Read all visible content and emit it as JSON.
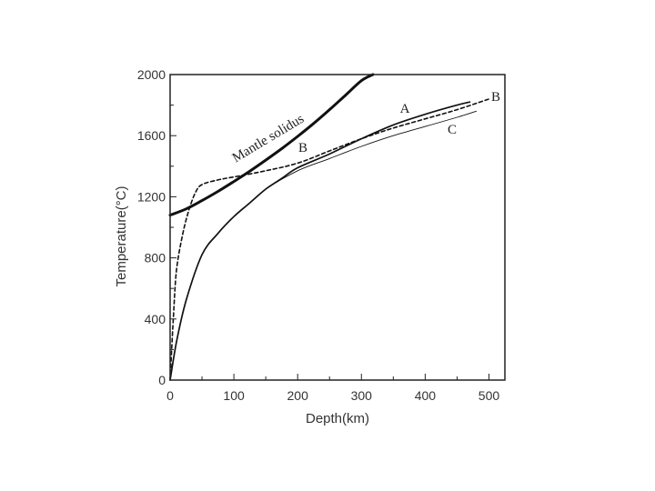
{
  "chart_data": {
    "type": "line",
    "xlabel": "Depth(km)",
    "ylabel": "Temperature(°C)",
    "xlim": [
      0,
      525
    ],
    "ylim": [
      0,
      2000
    ],
    "x_ticks": [
      0,
      100,
      200,
      300,
      400,
      500
    ],
    "y_ticks": [
      0,
      400,
      800,
      1200,
      1600,
      2000
    ],
    "grid": false,
    "series": [
      {
        "name": "Mantle solidus",
        "style": "thick-solid",
        "x": [
          0,
          25,
          50,
          75,
          100,
          125,
          150,
          175,
          200,
          225,
          250,
          275,
          300,
          318
        ],
        "y": [
          1080,
          1120,
          1175,
          1235,
          1300,
          1368,
          1440,
          1515,
          1595,
          1680,
          1770,
          1865,
          1960,
          2000
        ]
      },
      {
        "name": "A",
        "style": "solid",
        "x": [
          0,
          10,
          25,
          50,
          75,
          100,
          125,
          150,
          175,
          200,
          250,
          300,
          350,
          400,
          450,
          470
        ],
        "y": [
          0,
          250,
          520,
          820,
          960,
          1070,
          1160,
          1250,
          1320,
          1390,
          1480,
          1580,
          1670,
          1740,
          1800,
          1820
        ]
      },
      {
        "name": "B",
        "style": "dashed",
        "x": [
          0,
          5,
          10,
          20,
          30,
          40,
          50,
          75,
          100,
          150,
          200,
          250,
          300,
          350,
          400,
          450,
          500
        ],
        "y": [
          0,
          400,
          720,
          960,
          1120,
          1230,
          1280,
          1310,
          1330,
          1370,
          1420,
          1500,
          1580,
          1650,
          1710,
          1770,
          1840
        ]
      },
      {
        "name": "C",
        "style": "thin-solid",
        "x": [
          0,
          10,
          25,
          50,
          75,
          100,
          125,
          150,
          200,
          250,
          300,
          350,
          400,
          450,
          480
        ],
        "y": [
          0,
          250,
          520,
          820,
          960,
          1070,
          1160,
          1250,
          1370,
          1450,
          1530,
          1600,
          1660,
          1720,
          1760
        ]
      }
    ],
    "annotations": [
      {
        "text": "Mantle solidus",
        "series": "Mantle solidus"
      },
      {
        "text": "A",
        "series": "A"
      },
      {
        "text": "B",
        "series": "B"
      },
      {
        "text": "B",
        "series": "B"
      },
      {
        "text": "C",
        "series": "C"
      }
    ]
  }
}
